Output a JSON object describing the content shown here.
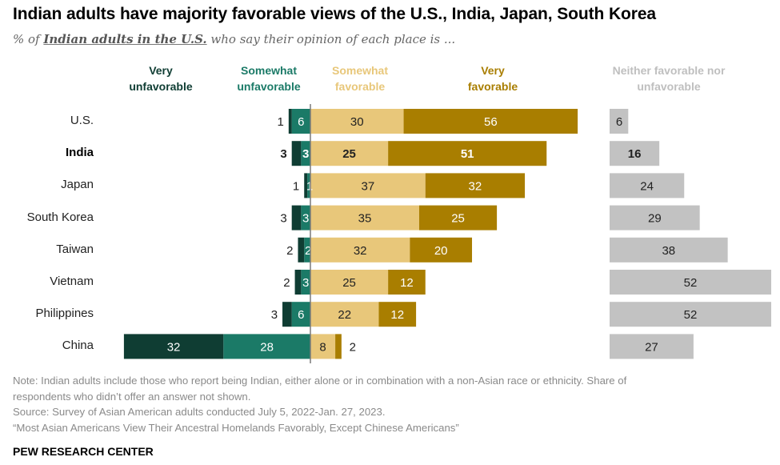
{
  "header": {
    "title": "Indian adults have majority favorable views of the U.S., India, Japan, South Korea",
    "subtitle_prefix": "% of ",
    "subtitle_emphasis": "Indian adults in the U.S.",
    "subtitle_suffix": " who say their opinion of each place is ..."
  },
  "legend": [
    {
      "line1": "Very",
      "line2": "unfavorable",
      "color": "#0f3d33"
    },
    {
      "line1": "Somewhat",
      "line2": "unfavorable",
      "color": "#1b7a67"
    },
    {
      "line1": "Somewhat",
      "line2": "favorable",
      "color": "#e8c77a"
    },
    {
      "line1": "Very",
      "line2": "favorable",
      "color": "#a97e00"
    },
    {
      "line1": "Neither favorable nor",
      "line2": "unfavorable",
      "color": "#bfbfbf"
    }
  ],
  "colors": {
    "very_unfavorable": "#0f3d33",
    "somewhat_unfavorable": "#1b7a67",
    "somewhat_favorable": "#e8c77a",
    "very_favorable": "#a97e00",
    "neither": "#c2c2c2",
    "axis": "#7a7a7a"
  },
  "chart_data": {
    "type": "bar",
    "subtype": "diverging-stacked-horizontal",
    "title": "Indian adults have majority favorable views of the U.S., India, Japan, South Korea",
    "subtitle": "% of Indian adults in the U.S. who say their opinion of each place is ...",
    "categories": [
      "U.S.",
      "India",
      "Japan",
      "South Korea",
      "Taiwan",
      "Vietnam",
      "Philippines",
      "China"
    ],
    "highlight_category": "India",
    "series": [
      {
        "name": "Very unfavorable",
        "side": "negative",
        "values": [
          1,
          3,
          1,
          3,
          2,
          2,
          3,
          32
        ]
      },
      {
        "name": "Somewhat unfavorable",
        "side": "negative",
        "values": [
          6,
          3,
          1,
          3,
          2,
          3,
          6,
          28
        ]
      },
      {
        "name": "Somewhat favorable",
        "side": "positive",
        "values": [
          30,
          25,
          37,
          35,
          32,
          25,
          22,
          8
        ]
      },
      {
        "name": "Very favorable",
        "side": "positive",
        "values": [
          56,
          51,
          32,
          25,
          20,
          12,
          12,
          2
        ]
      },
      {
        "name": "Neither favorable nor unfavorable",
        "side": "separate",
        "values": [
          6,
          16,
          24,
          29,
          38,
          52,
          52,
          27
        ]
      }
    ],
    "xlabel": "",
    "ylabel": "",
    "unit": "%",
    "grid": false,
    "legend_position": "top"
  },
  "footer": {
    "note_line1": "Note: Indian adults include those who report being Indian, either alone or in combination with a non-Asian race or ethnicity. Share of",
    "note_line2": "respondents who didn’t offer an answer not shown.",
    "source": "Source: Survey of Asian American adults conducted July 5, 2022-Jan. 27, 2023.",
    "report": "“Most Asian Americans View Their Ancestral Homelands Favorably, Except Chinese Americans”",
    "brand": "PEW RESEARCH CENTER"
  }
}
